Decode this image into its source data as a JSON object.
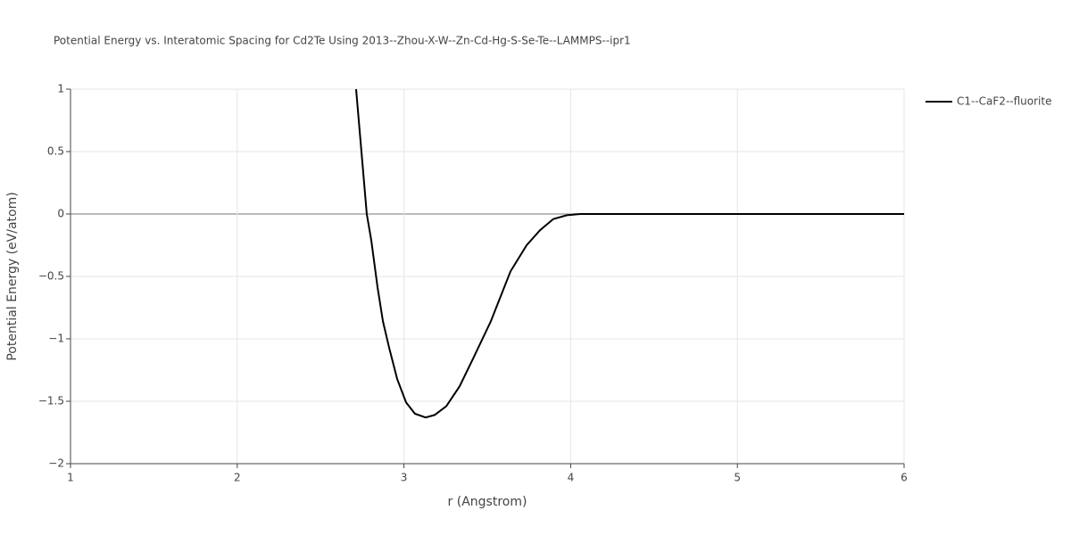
{
  "chart_data": {
    "type": "line",
    "title": "Potential Energy vs. Interatomic Spacing for Cd2Te Using 2013--Zhou-X-W--Zn-Cd-Hg-S-Se-Te--LAMMPS--ipr1",
    "x_label": "r (Angstrom)",
    "y_label": "Potential Energy (eV/atom)",
    "x": [
      2.713,
      2.745,
      2.777,
      2.804,
      2.842,
      2.874,
      2.911,
      2.959,
      3.013,
      3.066,
      3.13,
      3.184,
      3.254,
      3.334,
      3.414,
      3.521,
      3.639,
      3.736,
      3.816,
      3.896,
      3.977,
      4.057,
      6
    ],
    "series": [
      {
        "name": "C1--CaF2--fluorite",
        "color": "#000000",
        "values": [
          1,
          0.5,
          0,
          -0.21,
          -0.59,
          -0.86,
          -1.07,
          -1.32,
          -1.51,
          -1.6,
          -1.63,
          -1.61,
          -1.54,
          -1.38,
          -1.16,
          -0.86,
          -0.46,
          -0.25,
          -0.13,
          -0.04,
          -0.01,
          0,
          0
        ]
      }
    ],
    "xlim": [
      1,
      6
    ],
    "ylim": [
      -2,
      1
    ],
    "xticks": [
      1,
      2,
      3,
      4,
      5,
      6
    ],
    "yticks": [
      1,
      0.5,
      0,
      {
        "value": -0.5,
        "label": "−0.5"
      },
      {
        "value": -1,
        "label": "−1"
      },
      {
        "value": -1.5,
        "label": "−1.5"
      },
      {
        "value": -2,
        "label": "−2"
      }
    ],
    "grid": true,
    "legend": "top-right"
  }
}
